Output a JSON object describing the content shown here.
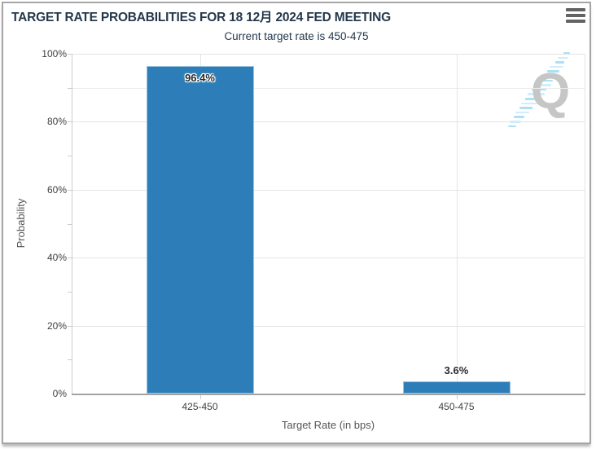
{
  "header": {
    "title": "TARGET RATE PROBABILITIES FOR 18 12月 2024 FED MEETING",
    "subtitle": "Current target rate is 450-475"
  },
  "menu": {
    "icon": "hamburger-menu-icon"
  },
  "watermark": {
    "letter": "Q"
  },
  "colors": {
    "bar": "#2d7eb8",
    "bar_border": "#9cc3de",
    "title_text": "#24384c",
    "axis_text": "#404040",
    "axis_title_text": "#555555",
    "gridline": "#e4e4e4",
    "minor_gridline": "#ececec",
    "axis_line": "#a3a3a3",
    "tick": "#cccccc",
    "watermark_letter": "#c6c6c6",
    "watermark_dash": "#a9def6",
    "menu_icon": "#636363"
  },
  "chart_data": {
    "type": "bar",
    "title": "TARGET RATE PROBABILITIES FOR 18 12月 2024 FED MEETING",
    "subtitle": "Current target rate is 450-475",
    "categories": [
      "425-450",
      "450-475"
    ],
    "values": [
      96.4,
      3.6
    ],
    "value_labels": [
      "96.4%",
      "3.6%"
    ],
    "xlabel": "Target Rate (in bps)",
    "ylabel": "Probability",
    "ylim": [
      0,
      100
    ],
    "ytick_interval": 20,
    "ytick_labels": [
      "0%",
      "20%",
      "40%",
      "60%",
      "80%",
      "100%"
    ],
    "yminor_tick_interval": 10,
    "yminor_gridlines": [
      90
    ],
    "grid": true,
    "legend": false
  }
}
